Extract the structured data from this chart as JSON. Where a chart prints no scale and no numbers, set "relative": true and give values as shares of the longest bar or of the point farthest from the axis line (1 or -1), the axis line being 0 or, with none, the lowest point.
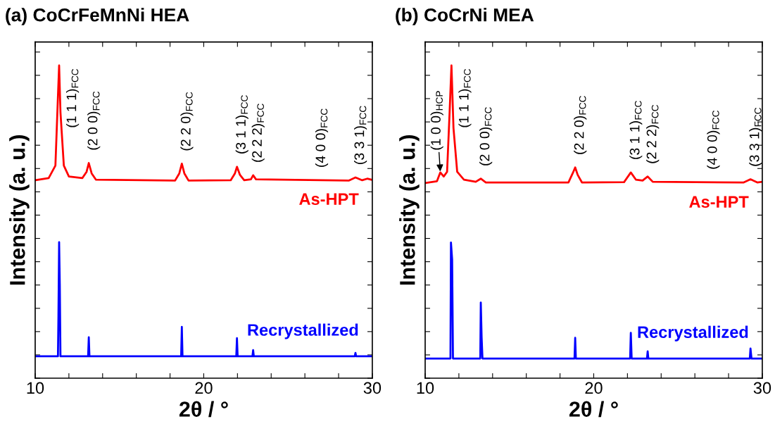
{
  "chart_data": [
    {
      "type": "line",
      "title": "(a) CoCrFeMnNi HEA",
      "xlabel": "2θ / °",
      "ylabel": "Intensity (a. u.)",
      "relative": true,
      "tick_labels": "x",
      "xlim": [
        10,
        30
      ],
      "xticks": [
        10,
        {
          "value": 12,
          "label": null
        },
        {
          "value": 14,
          "label": null
        },
        {
          "value": 16,
          "label": null
        },
        {
          "value": 18,
          "label": null
        },
        20,
        {
          "value": 22,
          "label": null
        },
        {
          "value": 24,
          "label": null
        },
        {
          "value": 26,
          "label": null
        },
        {
          "value": 28,
          "label": null
        },
        30
      ],
      "series": [
        {
          "name": "As-HPT",
          "color": "#ff0000",
          "x": [
            10,
            10.8,
            11.2,
            11.35,
            11.42,
            11.5,
            11.7,
            12.0,
            12.8,
            13.05,
            13.18,
            13.35,
            13.6,
            18.3,
            18.55,
            18.7,
            18.85,
            19.1,
            21.6,
            21.85,
            21.97,
            22.15,
            22.4,
            22.8,
            22.93,
            23.1,
            28.6,
            29.0,
            29.4,
            29.7,
            30
          ],
          "values": [
            0.633,
            0.64,
            0.68,
            0.9,
            1.0,
            0.85,
            0.68,
            0.645,
            0.64,
            0.66,
            0.688,
            0.655,
            0.635,
            0.632,
            0.655,
            0.686,
            0.655,
            0.632,
            0.633,
            0.655,
            0.676,
            0.65,
            0.633,
            0.636,
            0.649,
            0.636,
            0.632,
            0.642,
            0.633,
            0.638,
            0.634
          ]
        },
        {
          "name": "Recrystallized",
          "color": "#0000ff",
          "x": [
            10,
            11.35,
            11.38,
            11.42,
            11.46,
            11.5,
            13.14,
            13.18,
            13.22,
            18.66,
            18.7,
            18.74,
            21.93,
            21.97,
            22.01,
            22.89,
            22.93,
            22.97,
            28.96,
            29.0,
            29.04,
            30
          ],
          "values": [
            0.07,
            0.07,
            0.2,
            0.435,
            0.3,
            0.07,
            0.07,
            0.131,
            0.07,
            0.07,
            0.164,
            0.07,
            0.07,
            0.128,
            0.07,
            0.07,
            0.09,
            0.07,
            0.07,
            0.081,
            0.07,
            0.07
          ]
        }
      ],
      "annotations": [
        {
          "text": "(1 1 1)$_{FCC}$",
          "x": 11.42,
          "y": 1.0
        },
        {
          "text": "(2 0 0)$_{FCC}$",
          "x": 13.18,
          "y": 0.688
        },
        {
          "text": "(2 2 0)$_{FCC}$",
          "x": 18.7,
          "y": 0.686
        },
        {
          "text": "(3 1 1)$_{FCC}$",
          "x": 21.97,
          "y": 0.676
        },
        {
          "text": "(2 2 2)$_{FCC}$",
          "x": 22.93,
          "y": 0.649
        },
        {
          "text": "(4 0 0)$_{FCC}$",
          "x": 26.7,
          "y": 0.633
        },
        {
          "text": "(3 3 1)$_{FCC}$",
          "x": 29.0,
          "y": 0.642
        }
      ]
    },
    {
      "type": "line",
      "title": "(b) CoCrNi MEA",
      "xlabel": "2θ / °",
      "ylabel": "Intensity (a. u.)",
      "relative": true,
      "tick_labels": "x",
      "xlim": [
        10,
        30
      ],
      "xticks": [
        10,
        {
          "value": 12,
          "label": null
        },
        {
          "value": 14,
          "label": null
        },
        {
          "value": 16,
          "label": null
        },
        {
          "value": 18,
          "label": null
        },
        20,
        {
          "value": 22,
          "label": null
        },
        {
          "value": 24,
          "label": null
        },
        {
          "value": 26,
          "label": null
        },
        {
          "value": 28,
          "label": null
        },
        30
      ],
      "series": [
        {
          "name": "As-HPT",
          "color": "#ff0000",
          "x": [
            10,
            10.7,
            10.9,
            11.1,
            11.3,
            11.45,
            11.56,
            11.68,
            11.9,
            12.3,
            13.0,
            13.3,
            13.6,
            18.5,
            18.75,
            18.9,
            19.05,
            19.3,
            21.8,
            22.2,
            22.5,
            22.9,
            23.2,
            23.5,
            28.9,
            29.3,
            29.7,
            30
          ],
          "values": [
            0.624,
            0.63,
            0.658,
            0.645,
            0.66,
            0.85,
            1.0,
            0.8,
            0.66,
            0.635,
            0.628,
            0.638,
            0.626,
            0.626,
            0.655,
            0.674,
            0.65,
            0.626,
            0.627,
            0.658,
            0.635,
            0.632,
            0.645,
            0.628,
            0.626,
            0.636,
            0.626,
            0.628
          ]
        },
        {
          "name": "Recrystallized",
          "color": "#0000ff",
          "x": [
            10,
            11.5,
            11.53,
            11.6,
            11.65,
            13.27,
            13.3,
            13.35,
            13.4,
            18.86,
            18.9,
            18.94,
            22.16,
            22.2,
            22.25,
            23.16,
            23.2,
            23.24,
            29.26,
            29.3,
            29.36,
            30
          ],
          "values": [
            0.063,
            0.063,
            0.434,
            0.38,
            0.063,
            0.063,
            0.242,
            0.13,
            0.063,
            0.063,
            0.129,
            0.063,
            0.063,
            0.145,
            0.063,
            0.063,
            0.086,
            0.063,
            0.063,
            0.095,
            0.063,
            0.063
          ]
        }
      ],
      "annotations": [
        {
          "text": "(1 0 0)$_{HCP}$",
          "x": 10.9,
          "y": 0.658
        },
        {
          "text": "(1 1 1)$_{FCC}$",
          "x": 11.56,
          "y": 1.0
        },
        {
          "text": "(2 0 0)$_{FCC}$",
          "x": 13.3,
          "y": 0.638
        },
        {
          "text": "(2 2 0)$_{FCC}$",
          "x": 18.9,
          "y": 0.674
        },
        {
          "text": "(3 1 1)$_{FCC}$",
          "x": 22.2,
          "y": 0.658
        },
        {
          "text": "(2 2 2)$_{FCC}$",
          "x": 23.2,
          "y": 0.645
        },
        {
          "text": "(4 0 0)$_{FCC}$",
          "x": 26.8,
          "y": 0.627
        },
        {
          "text": "(3 3 1)$_{FCC}$",
          "x": 29.3,
          "y": 0.636
        }
      ]
    }
  ]
}
